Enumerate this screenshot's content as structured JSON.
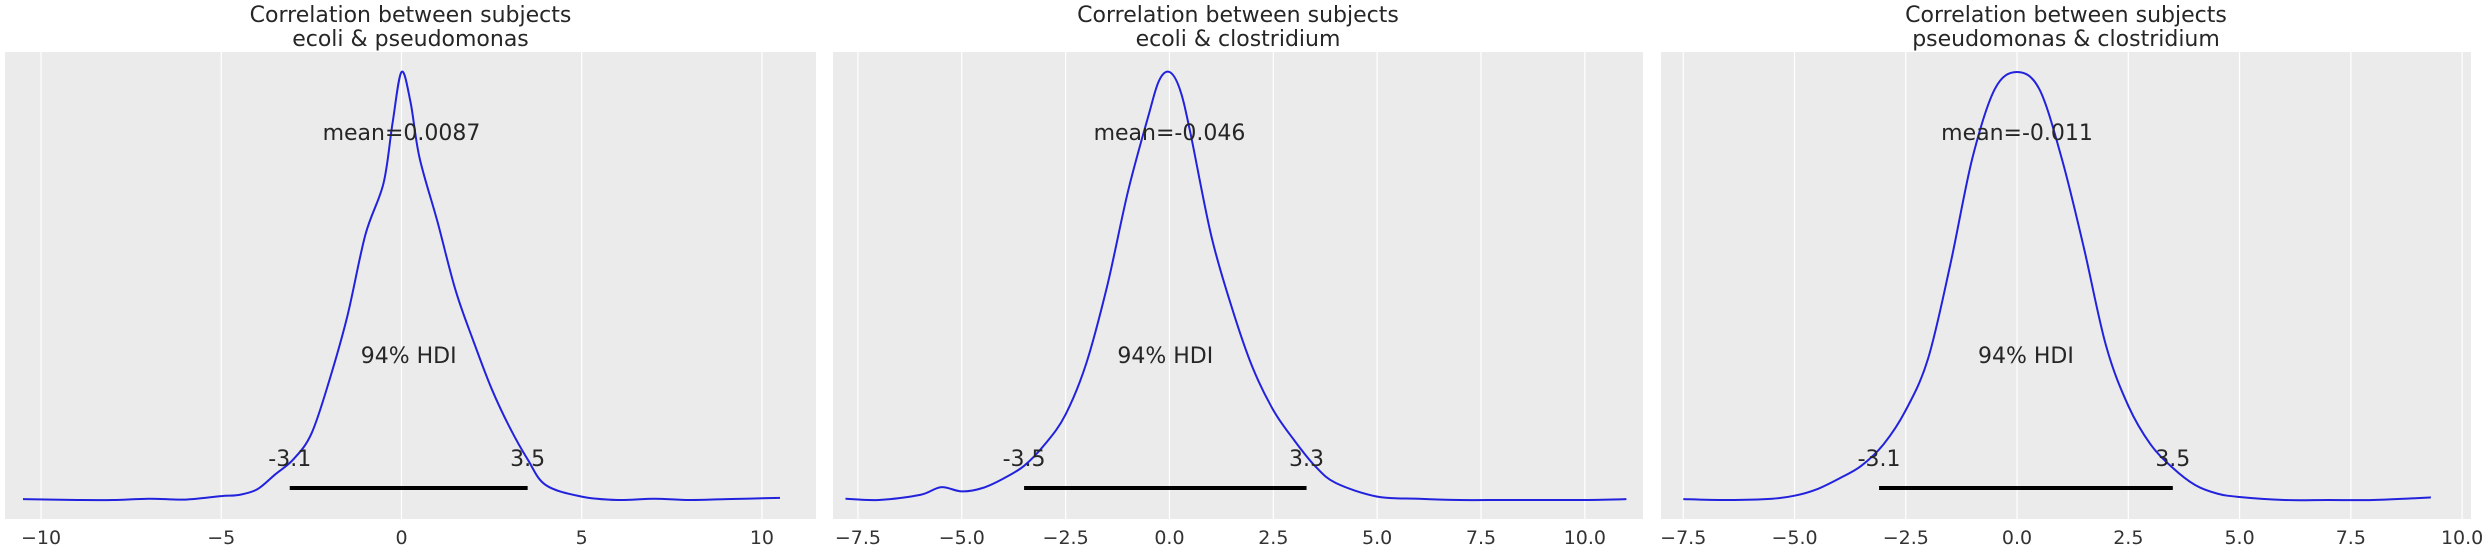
{
  "chart_data": [
    {
      "type": "line",
      "title": [
        "Correlation between subjects",
        "ecoli & pseudomonas"
      ],
      "xlim": [
        -11,
        11.5
      ],
      "xticks": [
        -10,
        -5,
        0,
        5,
        10
      ],
      "xtick_labels": [
        "−10",
        "−5",
        "0",
        "5",
        "10"
      ],
      "mean_label": "mean=0.0087",
      "hdi_label": "94% HDI",
      "hdi": [
        -3.1,
        3.5
      ],
      "hdi_low_label": "-3.1",
      "hdi_high_label": "3.5",
      "grid": true,
      "line_color": "#2222dd",
      "series": [
        {
          "x": [
            -10.5,
            -9,
            -8,
            -7,
            -6,
            -5,
            -4.5,
            -4,
            -3.5,
            -3,
            -2.5,
            -2,
            -1.5,
            -1,
            -0.5,
            -0.25,
            0,
            0.25,
            0.5,
            1,
            1.5,
            2,
            2.5,
            3,
            3.5,
            4,
            5,
            6,
            7,
            8,
            9,
            10.5
          ],
          "y": [
            0.002,
            0.0,
            0.0,
            0.003,
            0.001,
            0.009,
            0.012,
            0.025,
            0.06,
            0.095,
            0.155,
            0.28,
            0.43,
            0.62,
            0.74,
            0.88,
            1.0,
            0.93,
            0.8,
            0.65,
            0.49,
            0.37,
            0.26,
            0.17,
            0.095,
            0.035,
            0.008,
            0.0,
            0.003,
            0.0,
            0.002,
            0.005
          ]
        }
      ]
    },
    {
      "type": "line",
      "title": [
        "Correlation between subjects",
        "ecoli & clostridium"
      ],
      "xlim": [
        -8.1,
        11.4
      ],
      "xticks": [
        -7.5,
        -5.0,
        -2.5,
        0.0,
        2.5,
        5.0,
        7.5,
        10.0
      ],
      "xtick_labels": [
        "−7.5",
        "−5.0",
        "−2.5",
        "0.0",
        "2.5",
        "5.0",
        "7.5",
        "10.0"
      ],
      "mean_label": "mean=-0.046",
      "hdi_label": "94% HDI",
      "hdi": [
        -3.5,
        3.3
      ],
      "hdi_low_label": "-3.5",
      "hdi_high_label": "3.3",
      "grid": true,
      "line_color": "#2222dd",
      "series": [
        {
          "x": [
            -7.8,
            -7,
            -6,
            -5.5,
            -5,
            -4.5,
            -4,
            -3.5,
            -3,
            -2.5,
            -2,
            -1.5,
            -1,
            -0.5,
            -0.25,
            0,
            0.25,
            0.5,
            1,
            1.5,
            2,
            2.5,
            3,
            3.5,
            4,
            5,
            6,
            7,
            8,
            9,
            10,
            11
          ],
          "y": [
            0.003,
            0.0,
            0.012,
            0.03,
            0.02,
            0.028,
            0.05,
            0.08,
            0.13,
            0.2,
            0.32,
            0.5,
            0.72,
            0.9,
            0.98,
            1.0,
            0.96,
            0.86,
            0.62,
            0.45,
            0.31,
            0.21,
            0.14,
            0.08,
            0.04,
            0.008,
            0.003,
            0.0,
            0.0,
            0.0,
            0.0,
            0.002
          ]
        }
      ]
    },
    {
      "type": "line",
      "title": [
        "Correlation between subjects",
        "pseudomonas & clostridium"
      ],
      "xlim": [
        -8.0,
        10.2
      ],
      "xticks": [
        -7.5,
        -5.0,
        -2.5,
        0.0,
        2.5,
        5.0,
        7.5,
        10.0
      ],
      "xtick_labels": [
        "−7.5",
        "−5.0",
        "−2.5",
        "0.0",
        "2.5",
        "5.0",
        "7.5",
        "10.0"
      ],
      "mean_label": "mean=-0.011",
      "hdi_label": "94% HDI",
      "hdi": [
        -3.1,
        3.5
      ],
      "hdi_low_label": "-3.1",
      "hdi_high_label": "3.5",
      "grid": true,
      "line_color": "#2222dd",
      "series": [
        {
          "x": [
            -7.5,
            -6.5,
            -5.5,
            -5,
            -4.5,
            -4,
            -3.5,
            -3,
            -2.5,
            -2,
            -1.5,
            -1,
            -0.5,
            0,
            0.5,
            1,
            1.5,
            2,
            2.5,
            3,
            3.5,
            4,
            4.5,
            5,
            6,
            7,
            8,
            9.3
          ],
          "y": [
            0.002,
            0.0,
            0.003,
            0.01,
            0.025,
            0.05,
            0.08,
            0.13,
            0.21,
            0.33,
            0.55,
            0.8,
            0.96,
            1.0,
            0.96,
            0.8,
            0.59,
            0.36,
            0.22,
            0.13,
            0.075,
            0.035,
            0.015,
            0.007,
            0.0,
            0.0,
            0.0,
            0.006
          ]
        }
      ]
    }
  ]
}
